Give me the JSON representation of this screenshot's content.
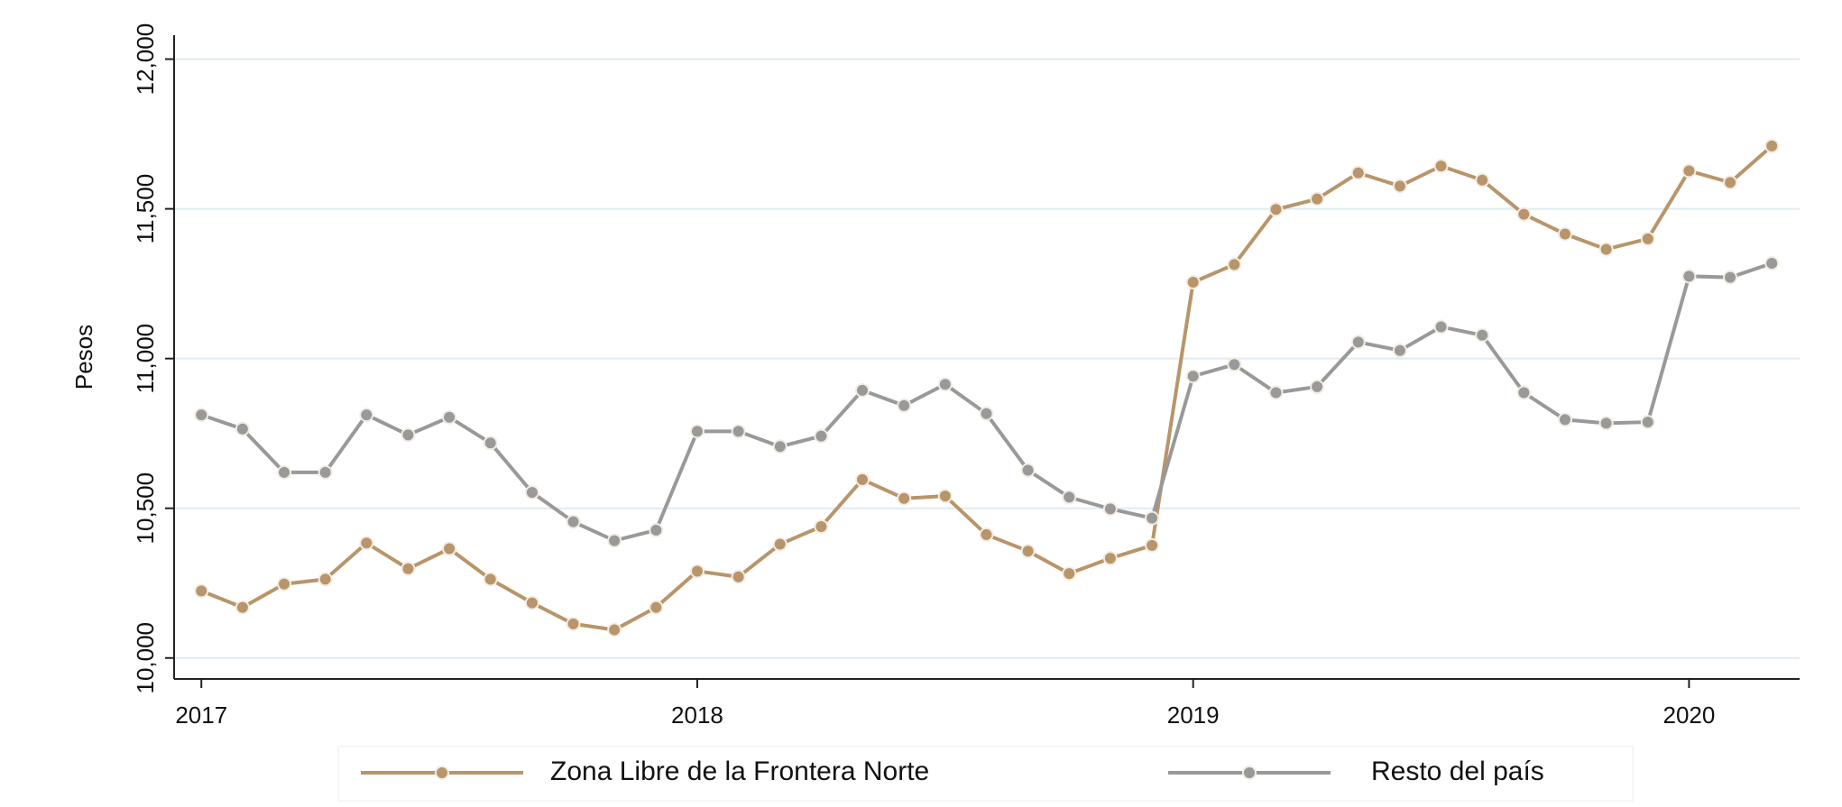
{
  "chart_data": {
    "type": "line",
    "y_label": "Pesos",
    "x": [
      2017,
      2017.083,
      2017.167,
      2017.25,
      2017.333,
      2017.417,
      2017.5,
      2017.583,
      2017.667,
      2017.75,
      2017.833,
      2017.917,
      2018,
      2018.083,
      2018.167,
      2018.25,
      2018.333,
      2018.417,
      2018.5,
      2018.583,
      2018.667,
      2018.75,
      2018.833,
      2018.917,
      2019,
      2019.083,
      2019.167,
      2019.25,
      2019.333,
      2019.417,
      2019.5,
      2019.583,
      2019.667,
      2019.75,
      2019.833,
      2019.917,
      2020,
      2020.083,
      2020.167
    ],
    "series": [
      {
        "name": "Zona Libre de la Frontera Norte",
        "color": "#b8956a",
        "values": [
          10224,
          10169,
          10247,
          10263,
          10384,
          10298,
          10365,
          10263,
          10184,
          10114,
          10094,
          10169,
          10290,
          10271,
          10380,
          10439,
          10596,
          10533,
          10541,
          10412,
          10357,
          10282,
          10333,
          10376,
          11255,
          11314,
          11498,
          11533,
          11620,
          11576,
          11643,
          11596,
          11482,
          11416,
          11365,
          11400,
          11627,
          11588,
          11710
        ]
      },
      {
        "name": "Resto del país",
        "color": "#999999",
        "values": [
          10812,
          10765,
          10620,
          10620,
          10812,
          10745,
          10804,
          10718,
          10553,
          10455,
          10392,
          10427,
          10757,
          10757,
          10706,
          10741,
          10894,
          10843,
          10914,
          10816,
          10627,
          10537,
          10498,
          10467,
          10941,
          10980,
          10886,
          10906,
          11055,
          11027,
          11106,
          11078,
          10886,
          10796,
          10784,
          10788,
          11275,
          11271,
          11318
        ]
      }
    ],
    "xlim": [
      2016.945,
      2020.223
    ],
    "xticks": [
      2017,
      2018,
      2019,
      2020
    ],
    "ylim": [
      9930,
      12080
    ],
    "yticks": [
      {
        "value": 10000,
        "label": "10,000"
      },
      {
        "value": 10500,
        "label": "10,500"
      },
      {
        "value": 11000,
        "label": "11,000"
      },
      {
        "value": 11500,
        "label": "11,500"
      },
      {
        "value": 12000,
        "label": "12,000"
      }
    ],
    "grid": true,
    "legend": "bottom"
  }
}
